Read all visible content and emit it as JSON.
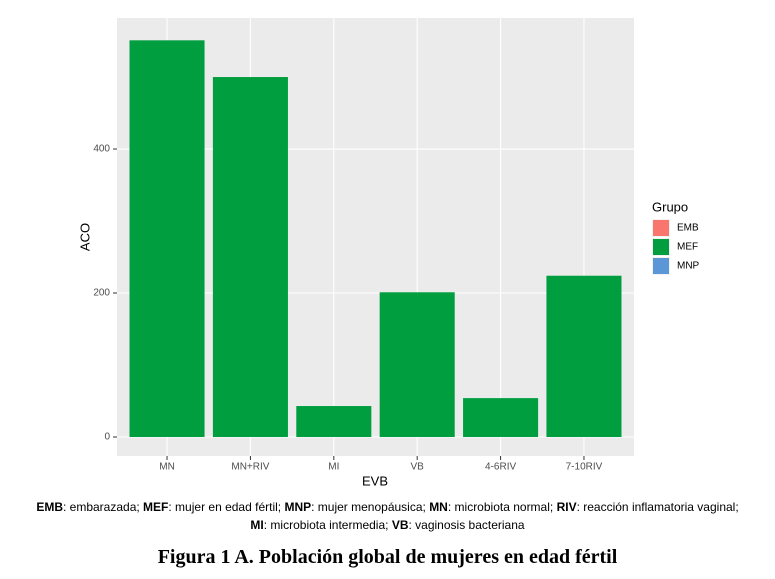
{
  "chart_data": {
    "type": "bar",
    "x_label": "EVB",
    "y_label": "ACO",
    "categories": [
      "MN",
      "MN+RIV",
      "MI",
      "VB",
      "4-6RIV",
      "7-10RIV"
    ],
    "series": [
      {
        "name": "EMB",
        "color": "#f8766d",
        "values": [
          null,
          null,
          null,
          null,
          null,
          null
        ]
      },
      {
        "name": "MEF",
        "color": "#009e3f",
        "values": [
          551,
          500,
          43,
          201,
          54,
          224
        ]
      },
      {
        "name": "MNP",
        "color": "#5b96d6",
        "values": [
          null,
          null,
          null,
          null,
          null,
          null
        ]
      }
    ],
    "legend_title": "Grupo",
    "legend": "right",
    "ylim": [
      -26.4,
      582
    ],
    "yticks": [
      0,
      200,
      400
    ],
    "grid": true
  },
  "caption": [
    [
      {
        "term": "EMB",
        "text": ": embarazada; "
      },
      {
        "term": "MEF",
        "text": ": mujer en edad fértil; "
      },
      {
        "term": "MNP",
        "text": ": mujer menopáusica; "
      },
      {
        "term": "MN",
        "text": ": microbiota normal; "
      },
      {
        "term": "RIV",
        "text": ": reacción inflamatoria vaginal;"
      }
    ],
    [
      {
        "term": "MI",
        "text": ": microbiota intermedia; "
      },
      {
        "term": "VB",
        "text": ": vaginosis bacteriana"
      }
    ]
  ],
  "figure_title": "Figura 1 A. Población global de mujeres en edad fértil"
}
